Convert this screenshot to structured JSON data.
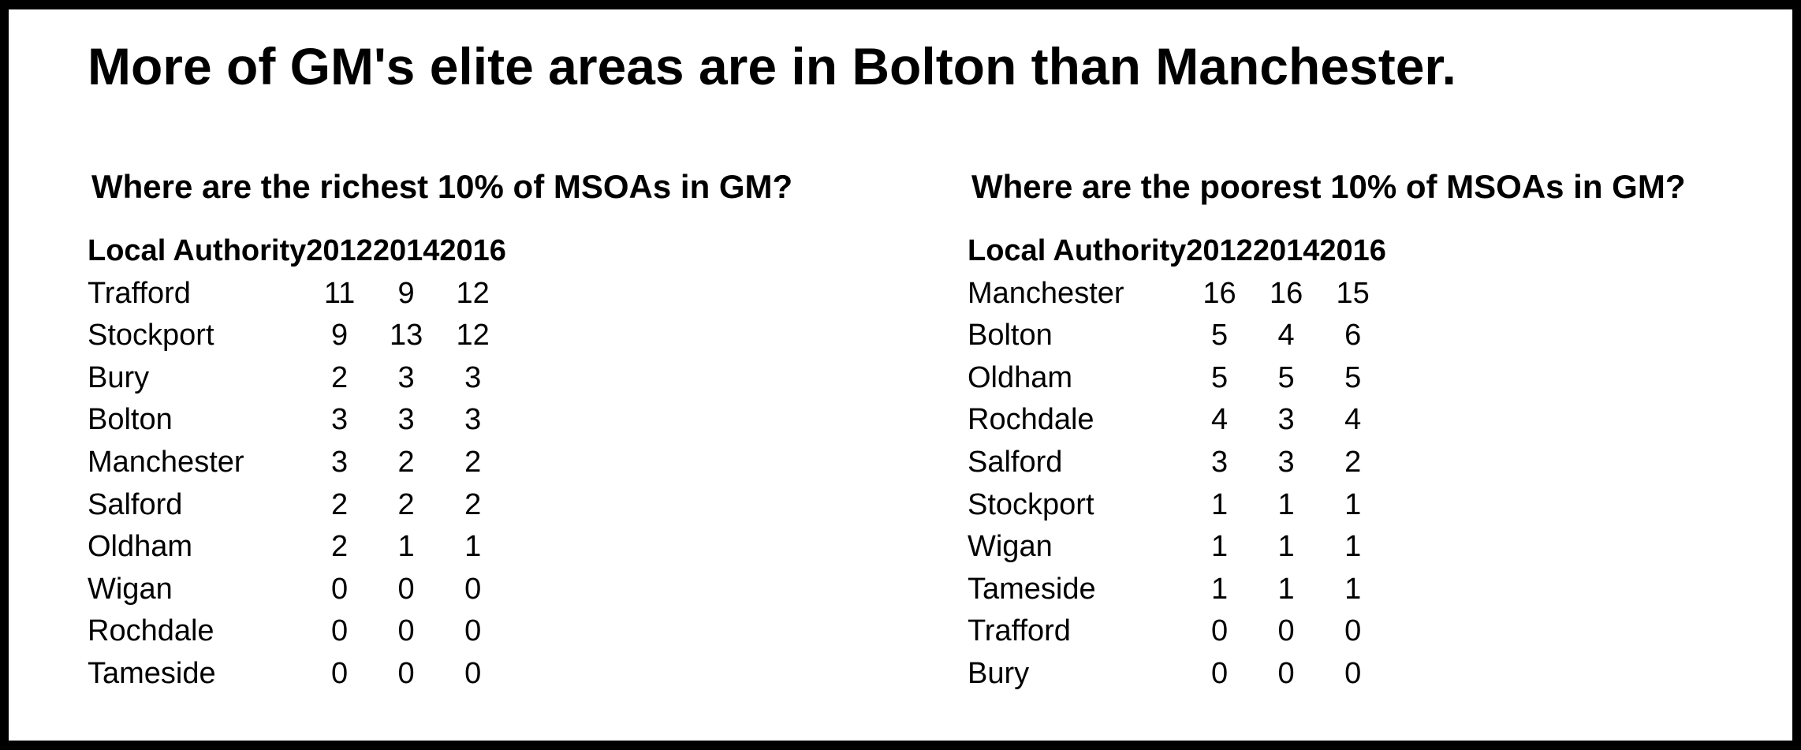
{
  "title": "More of GM's elite areas are in Bolton than Manchester.",
  "richest": {
    "heading": "Where are the richest 10% of MSOAs in GM?",
    "columns": [
      "Local Authority",
      "2012",
      "2014",
      "2016"
    ],
    "rows": [
      [
        "Trafford",
        "11",
        "9",
        "12"
      ],
      [
        "Stockport",
        "9",
        "13",
        "12"
      ],
      [
        "Bury",
        "2",
        "3",
        "3"
      ],
      [
        "Bolton",
        "3",
        "3",
        "3"
      ],
      [
        "Manchester",
        "3",
        "2",
        "2"
      ],
      [
        "Salford",
        "2",
        "2",
        "2"
      ],
      [
        "Oldham",
        "2",
        "1",
        "1"
      ],
      [
        "Wigan",
        "0",
        "0",
        "0"
      ],
      [
        "Rochdale",
        "0",
        "0",
        "0"
      ],
      [
        "Tameside",
        "0",
        "0",
        "0"
      ]
    ]
  },
  "poorest": {
    "heading": "Where are the poorest 10% of MSOAs in GM?",
    "columns": [
      "Local Authority",
      "2012",
      "2014",
      "2016"
    ],
    "rows": [
      [
        "Manchester",
        "16",
        "16",
        "15"
      ],
      [
        "Bolton",
        "5",
        "4",
        "6"
      ],
      [
        "Oldham",
        "5",
        "5",
        "5"
      ],
      [
        "Rochdale",
        "4",
        "3",
        "4"
      ],
      [
        "Salford",
        "3",
        "3",
        "2"
      ],
      [
        "Stockport",
        "1",
        "1",
        "1"
      ],
      [
        "Wigan",
        "1",
        "1",
        "1"
      ],
      [
        "Tameside",
        "1",
        "1",
        "1"
      ],
      [
        "Trafford",
        "0",
        "0",
        "0"
      ],
      [
        "Bury",
        "0",
        "0",
        "0"
      ]
    ]
  }
}
